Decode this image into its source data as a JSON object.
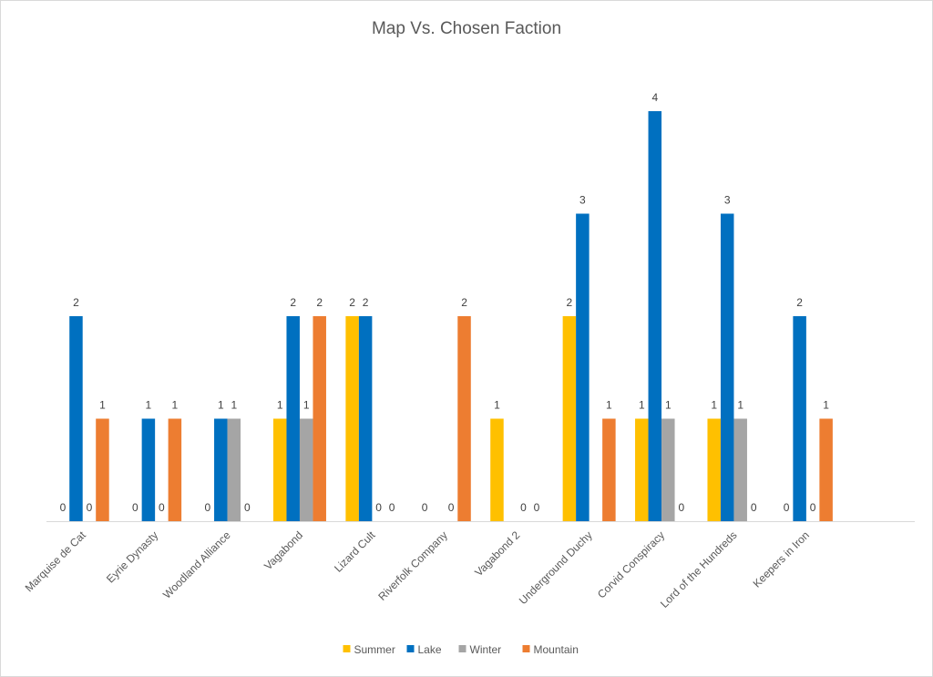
{
  "chart_data": {
    "type": "bar",
    "title": "Map Vs. Chosen Faction",
    "xlabel": "",
    "ylabel": "",
    "ylim": [
      0,
      4
    ],
    "grid": false,
    "legend_position": "bottom",
    "categories": [
      "Marquise de Cat",
      "Eyrie Dynasty",
      "Woodland Alliance",
      "Vagabond",
      "Lizard Cult",
      "Riverfolk Company",
      "Vagabond 2",
      "Underground Duchy",
      "Corvid Conspiracy",
      "Lord of the Hundreds",
      "Keepers in Iron"
    ],
    "series": [
      {
        "name": "Summer",
        "color": "#FFC000",
        "values": [
          0,
          0,
          0,
          1,
          2,
          0,
          1,
          2,
          1,
          1,
          0
        ]
      },
      {
        "name": "Lake",
        "color": "#0070C0",
        "values": [
          2,
          1,
          1,
          2,
          2,
          0,
          0,
          3,
          4,
          3,
          2
        ]
      },
      {
        "name": "Winter",
        "color": "#A5A5A5",
        "values": [
          0,
          0,
          1,
          1,
          0,
          0,
          0,
          0,
          1,
          1,
          0
        ]
      },
      {
        "name": "Mountain",
        "color": "#ED7D31",
        "values": [
          1,
          1,
          0,
          2,
          0,
          2,
          0,
          1,
          0,
          0,
          1
        ]
      }
    ],
    "label_visibility": [
      [
        true,
        true,
        true,
        true,
        true,
        true,
        true,
        true,
        true,
        true,
        true
      ],
      [
        true,
        true,
        true,
        true,
        true,
        false,
        false,
        true,
        true,
        true,
        true
      ],
      [
        true,
        true,
        true,
        true,
        true,
        true,
        true,
        false,
        true,
        true,
        true
      ],
      [
        true,
        true,
        true,
        true,
        true,
        true,
        true,
        true,
        true,
        true,
        true
      ]
    ]
  }
}
